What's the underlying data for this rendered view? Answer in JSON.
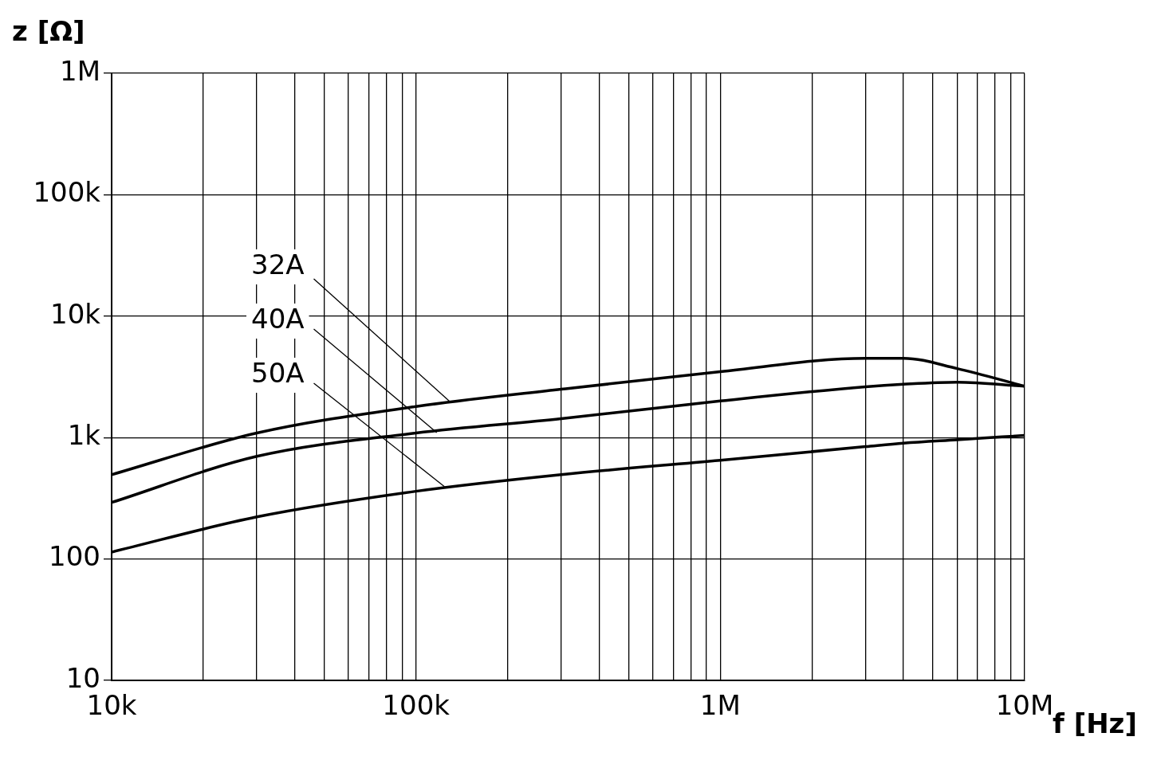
{
  "chart_data": {
    "type": "line",
    "xlabel": "f [Hz]",
    "ylabel": "z [Ω]",
    "log": "xy",
    "grid": true,
    "legend": false,
    "marker": "none",
    "line_style": "solid",
    "xlim": [
      10000,
      10000000
    ],
    "ylim": [
      10,
      1000000
    ],
    "xticks": [
      {
        "value": 10000,
        "label": "10k"
      },
      {
        "value": 20000,
        "label": null
      },
      {
        "value": 30000,
        "label": null
      },
      {
        "value": 40000,
        "label": null
      },
      {
        "value": 50000,
        "label": null
      },
      {
        "value": 60000,
        "label": null
      },
      {
        "value": 70000,
        "label": null
      },
      {
        "value": 80000,
        "label": null
      },
      {
        "value": 90000,
        "label": null
      },
      {
        "value": 100000,
        "label": "100k"
      },
      {
        "value": 200000,
        "label": null
      },
      {
        "value": 300000,
        "label": null
      },
      {
        "value": 400000,
        "label": null
      },
      {
        "value": 500000,
        "label": null
      },
      {
        "value": 600000,
        "label": null
      },
      {
        "value": 700000,
        "label": null
      },
      {
        "value": 800000,
        "label": null
      },
      {
        "value": 900000,
        "label": null
      },
      {
        "value": 1000000,
        "label": "1M"
      },
      {
        "value": 2000000,
        "label": null
      },
      {
        "value": 3000000,
        "label": null
      },
      {
        "value": 4000000,
        "label": null
      },
      {
        "value": 5000000,
        "label": null
      },
      {
        "value": 6000000,
        "label": null
      },
      {
        "value": 7000000,
        "label": null
      },
      {
        "value": 8000000,
        "label": null
      },
      {
        "value": 9000000,
        "label": null
      },
      {
        "value": 10000000,
        "label": "10M"
      }
    ],
    "yticks": [
      10,
      100,
      {
        "value": 1000,
        "label": "1k"
      },
      {
        "value": 10000,
        "label": "10k"
      },
      {
        "value": 100000,
        "label": "100k"
      },
      {
        "value": 1000000,
        "label": "1M"
      }
    ],
    "x": [
      10000,
      30000,
      100000,
      300000,
      1000000,
      3000000,
      4000000,
      6000000,
      10000000
    ],
    "series": [
      {
        "color": "#000000",
        "values": [
          495,
          1090,
          1800,
          2500,
          3490,
          4500,
          4500,
          3700,
          2650
        ]
      },
      {
        "color": "#000000",
        "values": [
          292,
          700,
          1090,
          1430,
          2000,
          2620,
          2750,
          2860,
          2650
        ]
      },
      {
        "color": "#000000",
        "values": [
          114,
          222,
          361,
          495,
          650,
          842,
          900,
          960,
          1040
        ]
      }
    ],
    "annotations": [
      {
        "text": "32A",
        "x": 130000,
        "y": 1950
      },
      {
        "text": "40A",
        "x": 117000,
        "y": 1100
      },
      {
        "text": "50A",
        "x": 124000,
        "y": 395
      }
    ]
  }
}
